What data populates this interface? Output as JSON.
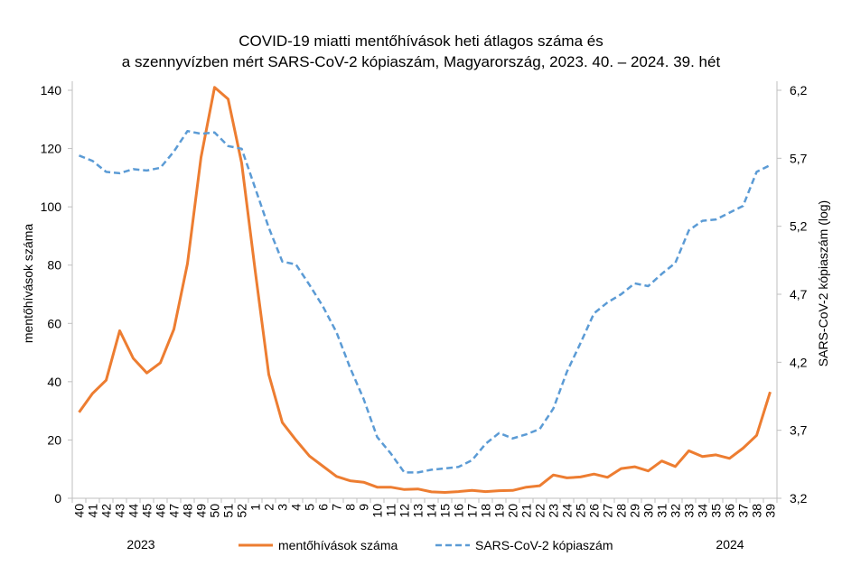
{
  "title_line1": "COVID-19 miatti mentőhívások heti átlagos száma és",
  "title_line2": "a szennyvízben mért SARS-CoV-2 kópiaszám, Magyarország, 2023. 40. – 2024. 39. hét",
  "chart_data": {
    "type": "line",
    "categories": [
      "40",
      "41",
      "42",
      "43",
      "44",
      "45",
      "46",
      "47",
      "48",
      "49",
      "50",
      "51",
      "52",
      "1",
      "2",
      "3",
      "4",
      "5",
      "6",
      "7",
      "8",
      "9",
      "10",
      "11",
      "12",
      "13",
      "14",
      "15",
      "16",
      "17",
      "18",
      "19",
      "20",
      "21",
      "22",
      "23",
      "24",
      "25",
      "26",
      "27",
      "28",
      "29",
      "30",
      "31",
      "32",
      "33",
      "34",
      "35",
      "36",
      "37",
      "38",
      "39"
    ],
    "year_labels": [
      "2023",
      "2024"
    ],
    "ylabel": "mentőhívások száma",
    "ylim": [
      0,
      140
    ],
    "yticks": [
      0,
      20,
      40,
      60,
      80,
      100,
      120,
      140
    ],
    "y2label": "SARS-CoV-2 kópiaszám (log)",
    "y2lim": [
      3.2,
      6.2
    ],
    "y2ticks": [
      "3,2",
      "3,7",
      "4,2",
      "4,7",
      "5,2",
      "5,7",
      "6,2"
    ],
    "series": [
      {
        "name": "mentőhívások száma",
        "axis": "left",
        "color": "#ED7D31",
        "style": "solid",
        "values": [
          29.5,
          36,
          40.5,
          57.5,
          48,
          43,
          46.5,
          58,
          80.5,
          117,
          141,
          137,
          115,
          78,
          42.5,
          26,
          20,
          14.5,
          11,
          7.5,
          6,
          5.5,
          3.8,
          3.8,
          3,
          3.2,
          2.2,
          2,
          2.3,
          2.7,
          2.3,
          2.6,
          2.7,
          3.8,
          4.3,
          8,
          7,
          7.3,
          8.3,
          7.2,
          10.2,
          10.8,
          9.4,
          12.8,
          10.9,
          16.3,
          14.3,
          14.9,
          13.7,
          17.2,
          21.6,
          36.5
        ]
      },
      {
        "name": "SARS-CoV-2 kópiaszám",
        "axis": "right",
        "color": "#5B9BD5",
        "style": "dashed",
        "values": [
          5.72,
          5.68,
          5.6,
          5.59,
          5.62,
          5.61,
          5.63,
          5.75,
          5.9,
          5.88,
          5.89,
          5.79,
          5.77,
          5.48,
          5.19,
          4.94,
          4.92,
          4.77,
          4.61,
          4.42,
          4.16,
          3.93,
          3.65,
          3.53,
          3.39,
          3.39,
          3.41,
          3.42,
          3.43,
          3.48,
          3.6,
          3.68,
          3.64,
          3.67,
          3.71,
          3.86,
          4.13,
          4.34,
          4.56,
          4.64,
          4.7,
          4.78,
          4.76,
          4.85,
          4.93,
          5.17,
          5.24,
          5.25,
          5.3,
          5.35,
          5.6,
          5.65
        ]
      }
    ],
    "legend_position": "bottom"
  }
}
